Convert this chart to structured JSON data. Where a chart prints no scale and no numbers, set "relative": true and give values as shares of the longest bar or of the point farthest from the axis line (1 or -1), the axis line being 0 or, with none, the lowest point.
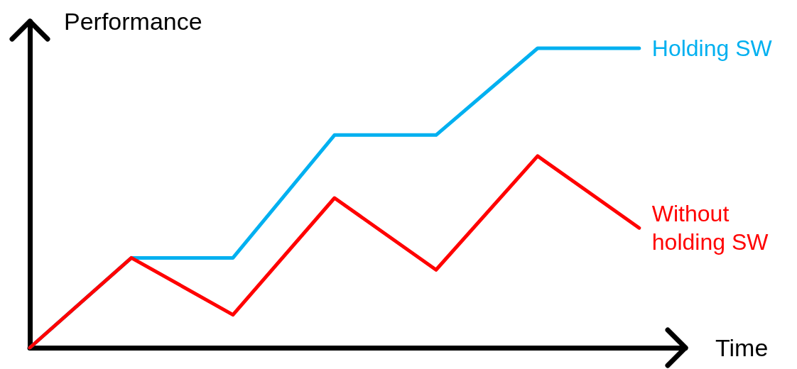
{
  "chart_data": {
    "type": "line",
    "relative": true,
    "xlabel": "Time",
    "ylabel": "Performance",
    "marker": "none",
    "line_style": "solid",
    "categories": [
      null,
      null,
      null,
      null,
      null,
      null,
      null
    ],
    "series": [
      {
        "name": "Holding SW",
        "color": "#00b0f0",
        "values": [
          0,
          0.3,
          0.3,
          0.71,
          0.71,
          1,
          1
        ]
      },
      {
        "name": "Without holding SW",
        "color": "#ff0000",
        "values": [
          0,
          0.3,
          0.11,
          0.5,
          0.26,
          0.64,
          0.4
        ]
      }
    ]
  }
}
